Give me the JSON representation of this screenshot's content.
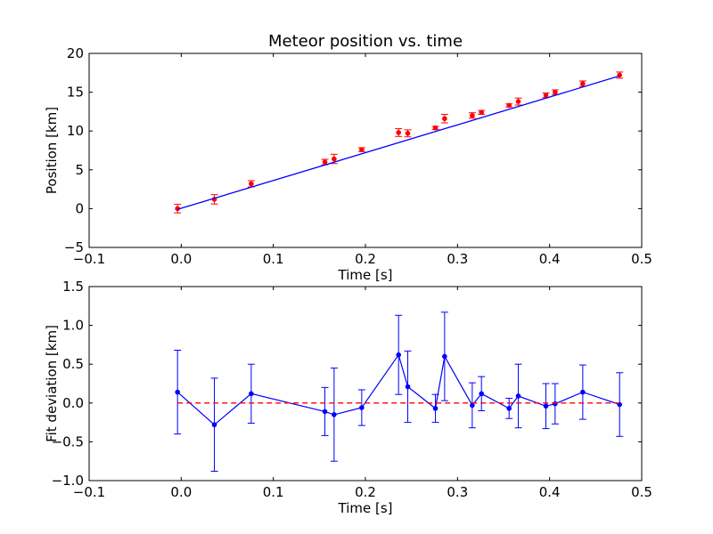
{
  "chart_data": [
    {
      "type": "scatter",
      "title": "Meteor position vs. time",
      "xlabel": "Time [s]",
      "ylabel": "Position [km]",
      "xlim": [
        -0.1,
        0.5
      ],
      "ylim": [
        -5,
        20
      ],
      "xticks": [
        -0.1,
        0.0,
        0.1,
        0.2,
        0.3,
        0.4,
        0.5
      ],
      "xtick_labels": [
        "−0.1",
        "0.0",
        "0.1",
        "0.2",
        "0.3",
        "0.4",
        "0.5"
      ],
      "yticks": [
        -5,
        0,
        5,
        10,
        15,
        20
      ],
      "ytick_labels": [
        "−5",
        "0",
        "5",
        "10",
        "15",
        "20"
      ],
      "grid": false,
      "series": [
        {
          "kind": "errorbar-points",
          "color": "#ff0000",
          "x": [
            -0.004,
            0.036,
            0.076,
            0.156,
            0.166,
            0.196,
            0.236,
            0.246,
            0.276,
            0.286,
            0.316,
            0.326,
            0.356,
            0.366,
            0.396,
            0.406,
            0.436,
            0.476
          ],
          "y": [
            0.0,
            1.2,
            3.2,
            6.0,
            6.4,
            7.6,
            9.8,
            9.7,
            10.4,
            11.6,
            12.0,
            12.4,
            13.3,
            13.8,
            14.6,
            15.0,
            16.1,
            17.2
          ],
          "yerr": [
            0.55,
            0.6,
            0.4,
            0.35,
            0.6,
            0.25,
            0.5,
            0.45,
            0.2,
            0.55,
            0.35,
            0.25,
            0.2,
            0.45,
            0.3,
            0.3,
            0.35,
            0.4
          ]
        },
        {
          "kind": "fit-line",
          "color": "#0000ff",
          "x": [
            -0.004,
            0.476
          ],
          "y": [
            -0.1,
            17.1
          ]
        }
      ]
    },
    {
      "type": "line",
      "title": "",
      "xlabel": "Time [s]",
      "ylabel": "Fit deviation [km]",
      "xlim": [
        -0.1,
        0.5
      ],
      "ylim": [
        -1.0,
        1.5
      ],
      "xticks": [
        -0.1,
        0.0,
        0.1,
        0.2,
        0.3,
        0.4,
        0.5
      ],
      "xtick_labels": [
        "−0.1",
        "0.0",
        "0.1",
        "0.2",
        "0.3",
        "0.4",
        "0.5"
      ],
      "yticks": [
        -1.0,
        -0.5,
        0.0,
        0.5,
        1.0,
        1.5
      ],
      "ytick_labels": [
        "−1.0",
        "−0.5",
        "0.0",
        "0.5",
        "1.0",
        "1.5"
      ],
      "grid": false,
      "series": [
        {
          "kind": "errorbar-line",
          "color": "#0000ff",
          "x": [
            -0.004,
            0.036,
            0.076,
            0.156,
            0.166,
            0.196,
            0.236,
            0.246,
            0.276,
            0.286,
            0.316,
            0.326,
            0.356,
            0.366,
            0.396,
            0.406,
            0.436,
            0.476
          ],
          "y": [
            0.14,
            -0.28,
            0.12,
            -0.11,
            -0.15,
            -0.06,
            0.62,
            0.21,
            -0.07,
            0.6,
            -0.03,
            0.12,
            -0.07,
            0.09,
            -0.04,
            -0.01,
            0.14,
            -0.02
          ],
          "yerr": [
            0.54,
            0.6,
            0.38,
            0.31,
            0.6,
            0.23,
            0.51,
            0.46,
            0.18,
            0.57,
            0.29,
            0.22,
            0.13,
            0.41,
            0.29,
            0.26,
            0.35,
            0.41
          ]
        },
        {
          "kind": "reference-line",
          "color": "#ff0000",
          "dashed": true,
          "x": [
            -0.004,
            0.476
          ],
          "y": [
            0.0,
            0.0
          ]
        }
      ]
    }
  ]
}
